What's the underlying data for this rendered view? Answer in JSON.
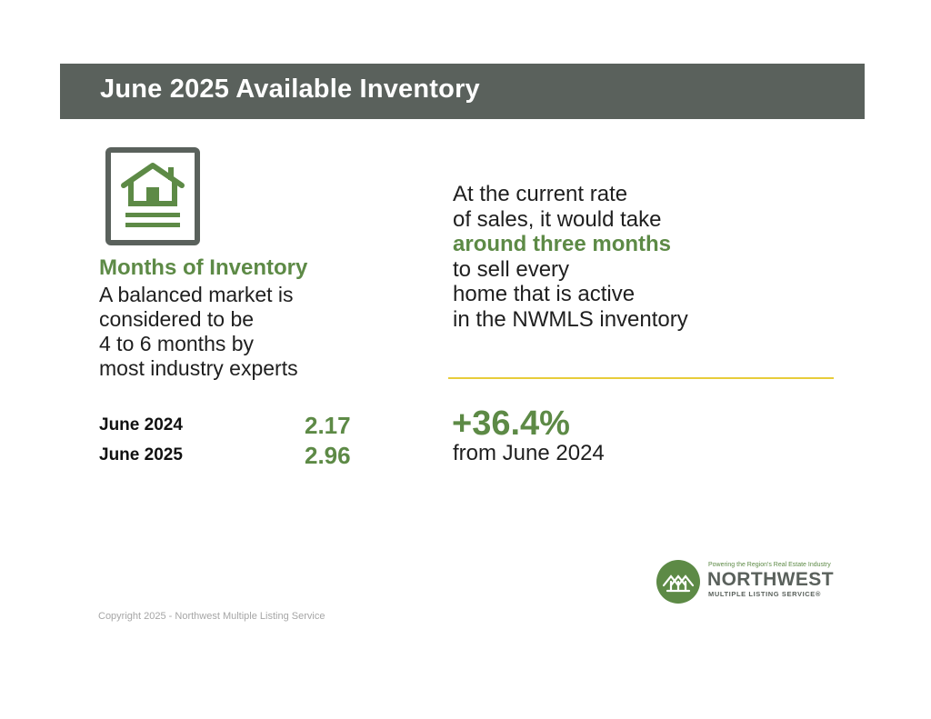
{
  "header": {
    "title": "June 2025 Available Inventory"
  },
  "icons": {
    "house": "house-document-icon",
    "logo_mark": "nwmls-logo-icon"
  },
  "months_of_inventory": {
    "title": "Months of Inventory",
    "description_lines": [
      "A balanced market is",
      "considered to be",
      "4 to 6 months by",
      "most industry experts"
    ],
    "stats": [
      {
        "label": "June 2024",
        "value": "2.17"
      },
      {
        "label": "June 2025",
        "value": "2.96"
      }
    ]
  },
  "rate_statement": {
    "lines": [
      "At the current rate",
      "of sales, it would take",
      "around three months",
      "to sell every",
      "home that is active",
      "in the NWMLS inventory"
    ]
  },
  "change": {
    "value": "+36.4%",
    "subtitle": "from June 2024"
  },
  "logo": {
    "tagline": "Powering the Region's Real Estate Industry",
    "name": "NORTHWEST",
    "subtitle": "MULTIPLE LISTING SERVICE",
    "registered": "®"
  },
  "footer": {
    "copyright": "Copyright 2025 - Northwest Multiple Listing Service"
  },
  "colors": {
    "header_bg": "#5a615c",
    "accent_green": "#5d8a46",
    "divider_yellow": "#e8cc3a",
    "icon_gray": "#5a615c",
    "footer_gray": "#a6a6a6"
  }
}
